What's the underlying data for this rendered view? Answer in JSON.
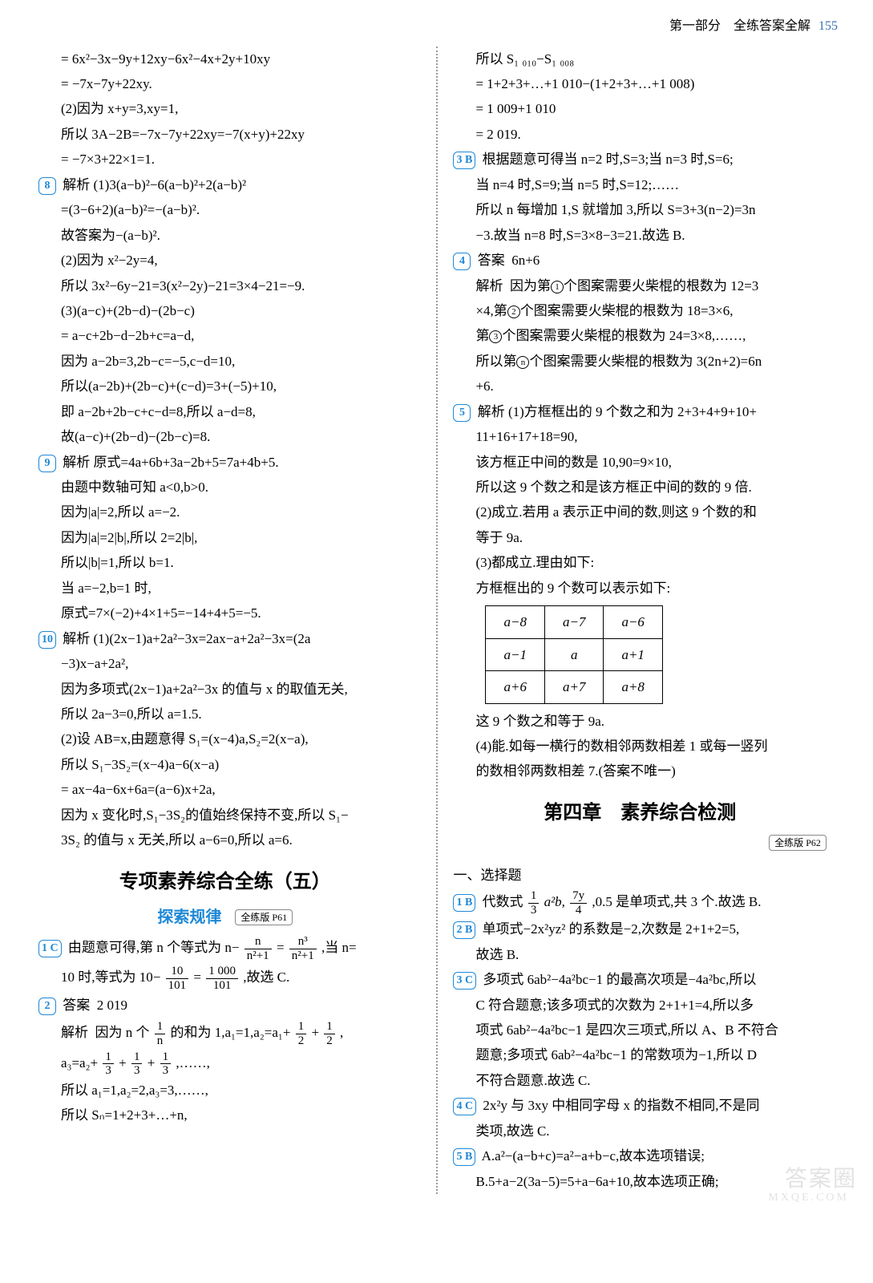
{
  "header": {
    "part": "第一部分　全练答案全解",
    "page": "155"
  },
  "left": {
    "l": [
      "= 6x²−3x−9y+12xy−6x²−4x+2y+10xy",
      "= −7x−7y+22xy.",
      "(2)因为 x+y=3,xy=1,",
      "所以 3A−2B=−7x−7y+22xy=−7(x+y)+22xy",
      "= −7×3+22×1=1."
    ],
    "q8": {
      "label": "8",
      "head": "解析",
      "lines": [
        "(1)3(a−b)²−6(a−b)²+2(a−b)²",
        "=(3−6+2)(a−b)²=−(a−b)².",
        "故答案为−(a−b)².",
        "(2)因为 x²−2y=4,",
        "所以 3x²−6y−21=3(x²−2y)−21=3×4−21=−9.",
        "(3)(a−c)+(2b−d)−(2b−c)",
        "= a−c+2b−d−2b+c=a−d,",
        "因为 a−2b=3,2b−c=−5,c−d=10,",
        "所以(a−2b)+(2b−c)+(c−d)=3+(−5)+10,",
        "即 a−2b+2b−c+c−d=8,所以 a−d=8,",
        "故(a−c)+(2b−d)−(2b−c)=8."
      ]
    },
    "q9": {
      "label": "9",
      "head": "解析",
      "lines": [
        "原式=4a+6b+3a−2b+5=7a+4b+5.",
        "由题中数轴可知 a<0,b>0.",
        "因为|a|=2,所以 a=−2.",
        "因为|a|=2|b|,所以 2=2|b|,",
        "所以|b|=1,所以 b=1.",
        "当 a=−2,b=1 时,",
        "原式=7×(−2)+4×1+5=−14+4+5=−5."
      ]
    },
    "q10": {
      "label": "10",
      "head": "解析",
      "lines": [
        "(1)(2x−1)a+2a²−3x=2ax−a+2a²−3x=(2a",
        "−3)x−a+2a²,",
        "因为多项式(2x−1)a+2a²−3x 的值与 x 的取值无关,",
        "所以 2a−3=0,所以 a=1.5.",
        "(2)设 AB=x,由题意得 S₁=(x−4)a,S₂=2(x−a),",
        "所以 S₁−3S₂=(x−4)a−6(x−a)",
        "= ax−4a−6x+6a=(a−6)x+2a,",
        "因为 x 变化时,S₁−3S₂的值始终保持不变,所以 S₁−",
        "3S₂ 的值与 x 无关,所以 a−6=0,所以 a=6."
      ]
    },
    "sec5": {
      "title": "专项素养综合全练（五）",
      "sub": "探索规律",
      "pageref": "全练版 P61"
    },
    "q1c": {
      "label": "1 C",
      "pre": "由题意可得,第 n 个等式为 n−",
      "frac1": {
        "n": "n",
        "d": "n²+1"
      },
      "mid": "=",
      "frac2": {
        "n": "n³",
        "d": "n²+1"
      },
      "tail": ",当 n=",
      "line2a": "10 时,等式为 10−",
      "frac3": {
        "n": "10",
        "d": "101"
      },
      "mid2": "=",
      "frac4": {
        "n": "1 000",
        "d": "101"
      },
      "line2b": ",故选 C."
    },
    "q2": {
      "label": "2",
      "ansLabel": "答案",
      "ans": "2 019",
      "head": "解析",
      "l1a": "因为 n 个",
      "frac_n": {
        "n": "1",
        "d": "n"
      },
      "l1b": "的和为 1,a₁=1,a₂=a₁+",
      "frac_12a": {
        "n": "1",
        "d": "2"
      },
      "plus": "+",
      "frac_12b": {
        "n": "1",
        "d": "2"
      },
      "comma": ",",
      "l2a": "a₃=a₂+",
      "frac_13a": {
        "n": "1",
        "d": "3"
      },
      "f13b": {
        "n": "1",
        "d": "3"
      },
      "f13c": {
        "n": "1",
        "d": "3"
      },
      "l2b": ",……,",
      "l3": "所以 a₁=1,a₂=2,a₃=3,……,",
      "l4": "所以 Sₙ=1+2+3+…+n,"
    }
  },
  "right": {
    "top": [
      "所以 S₁ ₀₁₀−S₁ ₀₀₈",
      "= 1+2+3+…+1 010−(1+2+3+…+1 008)",
      "= 1 009+1 010",
      "= 2 019."
    ],
    "q3b": {
      "label": "3 B",
      "lines": [
        "根据题意可得当 n=2 时,S=3;当 n=3 时,S=6;",
        "当 n=4 时,S=9;当 n=5 时,S=12;……",
        "所以 n 每增加 1,S 就增加 3,所以 S=3+3(n−2)=3n",
        "−3.故当 n=8 时,S=3×8−3=21.故选 B."
      ]
    },
    "q4": {
      "label": "4",
      "ansLabel": "答案",
      "ans": "6n+6",
      "head": "解析",
      "c1": "1",
      "c2": "2",
      "c3": "3",
      "cn": "n",
      "l1a": "因为第",
      "l1b": "个图案需要火柴棍的根数为 12=3",
      "l2": "×4,第",
      "l2b": "个图案需要火柴棍的根数为 18=3×6,",
      "l3a": "第",
      "l3b": "个图案需要火柴棍的根数为 24=3×8,……,",
      "l4a": "所以第",
      "l4b": "个图案需要火柴棍的根数为 3(2n+2)=6n",
      "l5": "+6."
    },
    "q5": {
      "label": "5",
      "head": "解析",
      "lines": [
        "(1)方框框出的 9 个数之和为 2+3+4+9+10+",
        "11+16+17+18=90,",
        "该方框正中间的数是 10,90=9×10,",
        "所以这 9 个数之和是该方框正中间的数的 9 倍.",
        "(2)成立.若用 a 表示正中间的数,则这 9 个数的和",
        "等于 9a.",
        "(3)都成立.理由如下:",
        "方框框出的 9 个数可以表示如下:"
      ],
      "grid": [
        [
          "a−8",
          "a−7",
          "a−6"
        ],
        [
          "a−1",
          "a",
          "a+1"
        ],
        [
          "a+6",
          "a+7",
          "a+8"
        ]
      ],
      "after": [
        "这 9 个数之和等于 9a.",
        "(4)能.如每一横行的数相邻两数相差 1 或每一竖列",
        "的数相邻两数相差 7.(答案不唯一)"
      ]
    },
    "sec4": {
      "title": "第四章　素养综合检测",
      "pageref": "全练版 P62"
    },
    "subhead": "一、选择题",
    "r1b": {
      "label": "1 B",
      "pre": "代数式",
      "f1": {
        "n": "1",
        "d": "3"
      },
      "mid1": "a²b,",
      "f2": {
        "n": "7y",
        "d": "4"
      },
      "tail": ",0.5 是单项式,共 3 个.故选 B."
    },
    "r2b": {
      "label": "2 B",
      "lines": [
        "单项式−2x²yz² 的系数是−2,次数是 2+1+2=5,",
        "故选 B."
      ]
    },
    "r3c": {
      "label": "3 C",
      "lines": [
        "多项式 6ab²−4a²bc−1 的最高次项是−4a²bc,所以",
        "C 符合题意;该多项式的次数为 2+1+1=4,所以多",
        "项式 6ab²−4a²bc−1 是四次三项式,所以 A、B 不符合",
        "题意;多项式 6ab²−4a²bc−1 的常数项为−1,所以 D",
        "不符合题意.故选 C."
      ]
    },
    "r4c": {
      "label": "4 C",
      "lines": [
        "2x²y 与 3xy 中相同字母 x 的指数不相同,不是同",
        "类项,故选 C."
      ]
    },
    "r5b": {
      "label": "5 B",
      "lines": [
        "A.a²−(a−b+c)=a²−a+b−c,故本选项错误;",
        "B.5+a−2(3a−5)=5+a−6a+10,故本选项正确;"
      ]
    }
  },
  "watermark": {
    "big": "答案圈",
    "small": "MXQE.COM"
  }
}
